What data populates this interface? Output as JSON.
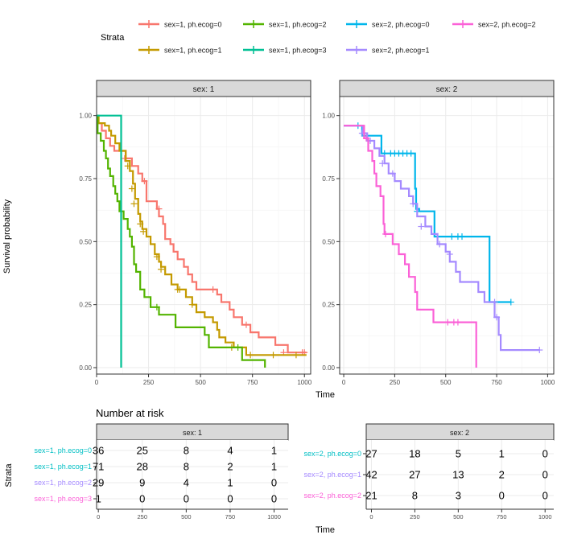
{
  "legend": {
    "title": "Strata",
    "items": [
      {
        "label": "sex=1, ph.ecog=0",
        "color": "#F8766D"
      },
      {
        "label": "sex=1, ph.ecog=2",
        "color": "#53B400"
      },
      {
        "label": "sex=2, ph.ecog=0",
        "color": "#00B6EB"
      },
      {
        "label": "sex=2, ph.ecog=2",
        "color": "#FB61D7"
      },
      {
        "label": "sex=1, ph.ecog=1",
        "color": "#C49A00"
      },
      {
        "label": "sex=1, ph.ecog=3",
        "color": "#00C094"
      },
      {
        "label": "sex=2, ph.ecog=1",
        "color": "#A58AFF"
      }
    ]
  },
  "chart_data": [
    {
      "type": "line",
      "step": true,
      "panel": "sex: 1",
      "xlabel": "Time",
      "ylabel": "Survival probability",
      "xlim": [
        0,
        1030
      ],
      "ylim": [
        0,
        1.05
      ],
      "x_ticks": [
        0,
        250,
        500,
        750,
        1000
      ],
      "y_ticks": [
        0.0,
        0.25,
        0.5,
        0.75,
        1.0
      ],
      "x_tick_labels": [
        "0",
        "250",
        "500",
        "750",
        "1000"
      ],
      "y_tick_labels": [
        "0.00",
        "0.25",
        "0.50",
        "0.75",
        "1.00"
      ],
      "series": [
        {
          "name": "sex=1, ph.ecog=0",
          "color": "#F8766D",
          "points": [
            [
              0,
              1.0
            ],
            [
              5,
              0.97
            ],
            [
              25,
              0.94
            ],
            [
              45,
              0.91
            ],
            [
              65,
              0.88
            ],
            [
              85,
              0.86
            ],
            [
              140,
              0.83
            ],
            [
              170,
              0.8
            ],
            [
              200,
              0.77
            ],
            [
              220,
              0.74
            ],
            [
              240,
              0.66
            ],
            [
              290,
              0.63
            ],
            [
              300,
              0.6
            ],
            [
              320,
              0.57
            ],
            [
              330,
              0.51
            ],
            [
              355,
              0.49
            ],
            [
              370,
              0.46
            ],
            [
              390,
              0.43
            ],
            [
              420,
              0.4
            ],
            [
              440,
              0.37
            ],
            [
              460,
              0.34
            ],
            [
              480,
              0.31
            ],
            [
              580,
              0.29
            ],
            [
              600,
              0.26
            ],
            [
              640,
              0.23
            ],
            [
              660,
              0.2
            ],
            [
              700,
              0.17
            ],
            [
              740,
              0.14
            ],
            [
              780,
              0.12
            ],
            [
              860,
              0.09
            ],
            [
              920,
              0.06
            ],
            [
              1010,
              0.06
            ]
          ],
          "censor": [
            [
              135,
              0.83
            ],
            [
              230,
              0.74
            ],
            [
              300,
              0.63
            ],
            [
              560,
              0.31
            ],
            [
              720,
              0.17
            ],
            [
              900,
              0.06
            ],
            [
              990,
              0.06
            ],
            [
              1000,
              0.06
            ]
          ]
        },
        {
          "name": "sex=1, ph.ecog=1",
          "color": "#C49A00",
          "points": [
            [
              0,
              1.0
            ],
            [
              10,
              0.97
            ],
            [
              40,
              0.96
            ],
            [
              60,
              0.94
            ],
            [
              70,
              0.92
            ],
            [
              90,
              0.89
            ],
            [
              110,
              0.86
            ],
            [
              140,
              0.82
            ],
            [
              160,
              0.78
            ],
            [
              175,
              0.73
            ],
            [
              185,
              0.67
            ],
            [
              200,
              0.61
            ],
            [
              210,
              0.58
            ],
            [
              220,
              0.55
            ],
            [
              240,
              0.52
            ],
            [
              260,
              0.49
            ],
            [
              280,
              0.45
            ],
            [
              300,
              0.42
            ],
            [
              310,
              0.4
            ],
            [
              330,
              0.37
            ],
            [
              360,
              0.33
            ],
            [
              390,
              0.31
            ],
            [
              430,
              0.28
            ],
            [
              460,
              0.25
            ],
            [
              480,
              0.22
            ],
            [
              520,
              0.2
            ],
            [
              560,
              0.18
            ],
            [
              580,
              0.15
            ],
            [
              590,
              0.12
            ],
            [
              620,
              0.1
            ],
            [
              660,
              0.08
            ],
            [
              720,
              0.05
            ],
            [
              1010,
              0.05
            ]
          ],
          "censor": [
            [
              150,
              0.8
            ],
            [
              170,
              0.71
            ],
            [
              180,
              0.65
            ],
            [
              210,
              0.57
            ],
            [
              225,
              0.54
            ],
            [
              290,
              0.44
            ],
            [
              310,
              0.39
            ],
            [
              390,
              0.31
            ],
            [
              400,
              0.31
            ],
            [
              460,
              0.25
            ],
            [
              650,
              0.08
            ],
            [
              740,
              0.05
            ],
            [
              850,
              0.05
            ],
            [
              960,
              0.05
            ]
          ]
        },
        {
          "name": "sex=1, ph.ecog=2",
          "color": "#53B400",
          "points": [
            [
              0,
              1.0
            ],
            [
              5,
              0.93
            ],
            [
              20,
              0.9
            ],
            [
              35,
              0.86
            ],
            [
              45,
              0.83
            ],
            [
              55,
              0.79
            ],
            [
              65,
              0.76
            ],
            [
              80,
              0.72
            ],
            [
              90,
              0.69
            ],
            [
              100,
              0.66
            ],
            [
              110,
              0.62
            ],
            [
              130,
              0.59
            ],
            [
              150,
              0.55
            ],
            [
              160,
              0.52
            ],
            [
              170,
              0.48
            ],
            [
              180,
              0.41
            ],
            [
              190,
              0.38
            ],
            [
              210,
              0.31
            ],
            [
              230,
              0.28
            ],
            [
              260,
              0.24
            ],
            [
              300,
              0.21
            ],
            [
              380,
              0.16
            ],
            [
              520,
              0.13
            ],
            [
              540,
              0.08
            ],
            [
              700,
              0.03
            ],
            [
              810,
              0.0
            ]
          ],
          "censor": [
            [
              290,
              0.24
            ],
            [
              680,
              0.08
            ]
          ]
        },
        {
          "name": "sex=1, ph.ecog=3",
          "color": "#00C094",
          "points": [
            [
              0,
              1.0
            ],
            [
              118,
              1.0
            ],
            [
              118,
              0.0
            ]
          ],
          "censor": []
        }
      ]
    },
    {
      "type": "line",
      "step": true,
      "panel": "sex: 2",
      "xlabel": "Time",
      "ylabel": "Survival probability",
      "xlim": [
        -20,
        1030
      ],
      "ylim": [
        0,
        1.05
      ],
      "x_ticks": [
        0,
        250,
        500,
        750,
        1000
      ],
      "y_ticks": [
        0.0,
        0.25,
        0.5,
        0.75,
        1.0
      ],
      "x_tick_labels": [
        "0",
        "250",
        "500",
        "750",
        "1000"
      ],
      "y_tick_labels": [
        "0.00",
        "0.25",
        "0.50",
        "0.75",
        "1.00"
      ],
      "series": [
        {
          "name": "sex=2, ph.ecog=0",
          "color": "#00B6EB",
          "points": [
            [
              0,
              0.96
            ],
            [
              80,
              0.96
            ],
            [
              90,
              0.92
            ],
            [
              180,
              0.92
            ],
            [
              185,
              0.85
            ],
            [
              340,
              0.85
            ],
            [
              350,
              0.71
            ],
            [
              355,
              0.63
            ],
            [
              370,
              0.62
            ],
            [
              440,
              0.62
            ],
            [
              445,
              0.52
            ],
            [
              710,
              0.52
            ],
            [
              715,
              0.26
            ],
            [
              820,
              0.26
            ]
          ],
          "censor": [
            [
              70,
              0.96
            ],
            [
              200,
              0.85
            ],
            [
              230,
              0.85
            ],
            [
              250,
              0.85
            ],
            [
              270,
              0.85
            ],
            [
              290,
              0.85
            ],
            [
              310,
              0.85
            ],
            [
              330,
              0.85
            ],
            [
              360,
              0.62
            ],
            [
              530,
              0.52
            ],
            [
              560,
              0.52
            ],
            [
              580,
              0.52
            ],
            [
              820,
              0.26
            ]
          ]
        },
        {
          "name": "sex=2, ph.ecog=1",
          "color": "#A58AFF",
          "points": [
            [
              0,
              0.96
            ],
            [
              80,
              0.96
            ],
            [
              95,
              0.93
            ],
            [
              115,
              0.9
            ],
            [
              150,
              0.87
            ],
            [
              175,
              0.84
            ],
            [
              200,
              0.81
            ],
            [
              220,
              0.77
            ],
            [
              250,
              0.74
            ],
            [
              280,
              0.71
            ],
            [
              320,
              0.68
            ],
            [
              340,
              0.65
            ],
            [
              360,
              0.6
            ],
            [
              400,
              0.56
            ],
            [
              430,
              0.53
            ],
            [
              460,
              0.49
            ],
            [
              500,
              0.46
            ],
            [
              520,
              0.42
            ],
            [
              550,
              0.38
            ],
            [
              570,
              0.34
            ],
            [
              660,
              0.3
            ],
            [
              690,
              0.26
            ],
            [
              740,
              0.2
            ],
            [
              760,
              0.13
            ],
            [
              770,
              0.07
            ],
            [
              960,
              0.07
            ]
          ],
          "censor": [
            [
              90,
              0.93
            ],
            [
              130,
              0.9
            ],
            [
              190,
              0.81
            ],
            [
              240,
              0.77
            ],
            [
              340,
              0.65
            ],
            [
              380,
              0.56
            ],
            [
              470,
              0.49
            ],
            [
              520,
              0.45
            ],
            [
              740,
              0.26
            ],
            [
              750,
              0.2
            ],
            [
              960,
              0.07
            ]
          ]
        },
        {
          "name": "sex=2, ph.ecog=2",
          "color": "#FB61D7",
          "points": [
            [
              0,
              0.96
            ],
            [
              90,
              0.96
            ],
            [
              100,
              0.91
            ],
            [
              120,
              0.86
            ],
            [
              140,
              0.82
            ],
            [
              150,
              0.77
            ],
            [
              160,
              0.72
            ],
            [
              180,
              0.68
            ],
            [
              195,
              0.57
            ],
            [
              200,
              0.53
            ],
            [
              240,
              0.49
            ],
            [
              270,
              0.45
            ],
            [
              300,
              0.41
            ],
            [
              320,
              0.36
            ],
            [
              350,
              0.3
            ],
            [
              360,
              0.23
            ],
            [
              440,
              0.18
            ],
            [
              640,
              0.18
            ],
            [
              650,
              0.0
            ]
          ],
          "censor": [
            [
              110,
              0.91
            ],
            [
              205,
              0.53
            ],
            [
              510,
              0.18
            ],
            [
              540,
              0.18
            ],
            [
              560,
              0.18
            ]
          ]
        }
      ]
    }
  ],
  "risk_table": {
    "title": "Number at risk",
    "xlabel": "Time",
    "ylabel": "Strata",
    "panels": [
      {
        "strip": "sex: 1",
        "x_tick_labels": [
          "0",
          "250",
          "500",
          "750",
          "1000"
        ],
        "rows": [
          {
            "label": "sex=1, ph.ecog=0",
            "color": "#00BFC4",
            "values": [
              "36",
              "25",
              "8",
              "4",
              "1"
            ]
          },
          {
            "label": "sex=1, ph.ecog=1",
            "color": "#00BFC4",
            "values": [
              "71",
              "28",
              "8",
              "2",
              "1"
            ]
          },
          {
            "label": "sex=1, ph.ecog=2",
            "color": "#A58AFF",
            "values": [
              "29",
              "9",
              "4",
              "1",
              "0"
            ]
          },
          {
            "label": "sex=1, ph.ecog=3",
            "color": "#FB61D7",
            "values": [
              "1",
              "0",
              "0",
              "0",
              "0"
            ]
          }
        ]
      },
      {
        "strip": "sex: 2",
        "x_tick_labels": [
          "0",
          "250",
          "500",
          "750",
          "1000"
        ],
        "rows": [
          {
            "label": "sex=2, ph.ecog=0",
            "color": "#00BFC4",
            "values": [
              "27",
              "18",
              "5",
              "1",
              "0"
            ]
          },
          {
            "label": "sex=2, ph.ecog=1",
            "color": "#A58AFF",
            "values": [
              "42",
              "27",
              "13",
              "2",
              "0"
            ]
          },
          {
            "label": "sex=2, ph.ecog=2",
            "color": "#FB61D7",
            "values": [
              "21",
              "8",
              "3",
              "0",
              "0"
            ]
          }
        ]
      }
    ]
  }
}
